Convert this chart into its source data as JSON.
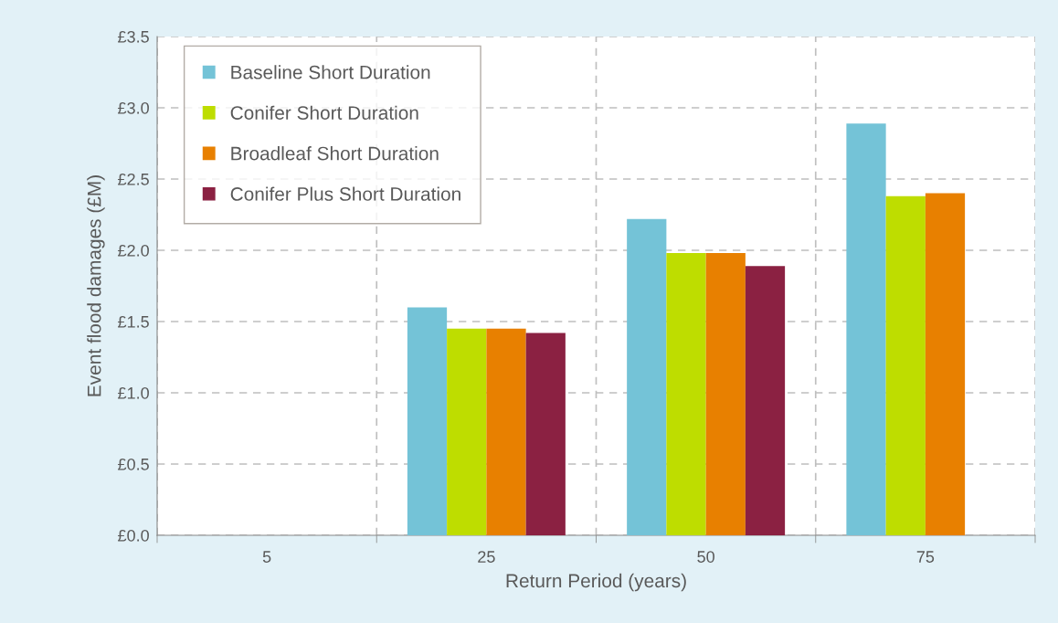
{
  "chart_data": {
    "type": "bar",
    "xlabel": "Return Period (years)",
    "ylabel": "Event flood damages (£M)",
    "categories": [
      "5",
      "25",
      "50",
      "75"
    ],
    "series": [
      {
        "name": "Baseline Short Duration",
        "color": "#74c3d7",
        "values": [
          null,
          1.6,
          2.22,
          2.89
        ]
      },
      {
        "name": "Conifer Short Duration",
        "color": "#bedd00",
        "values": [
          null,
          1.45,
          1.98,
          2.38
        ]
      },
      {
        "name": "Broadleaf Short Duration",
        "color": "#e88000",
        "values": [
          null,
          1.45,
          1.98,
          2.4
        ]
      },
      {
        "name": "Conifer Plus Short Duration",
        "color": "#8b2142",
        "values": [
          null,
          1.42,
          1.89,
          null
        ]
      }
    ],
    "ylim": [
      0,
      3.5
    ],
    "yticks": [
      {
        "value": 0,
        "label": "£0.0"
      },
      {
        "value": 0.5,
        "label": "£0.5"
      },
      {
        "value": 1,
        "label": "£1.0"
      },
      {
        "value": 1.5,
        "label": "£1.5"
      },
      {
        "value": 2,
        "label": "£2.0"
      },
      {
        "value": 2.5,
        "label": "£2.5"
      },
      {
        "value": 3,
        "label": "£3.0"
      },
      {
        "value": 3.5,
        "label": "£3.5"
      }
    ],
    "grid": true,
    "legend": "top left"
  }
}
